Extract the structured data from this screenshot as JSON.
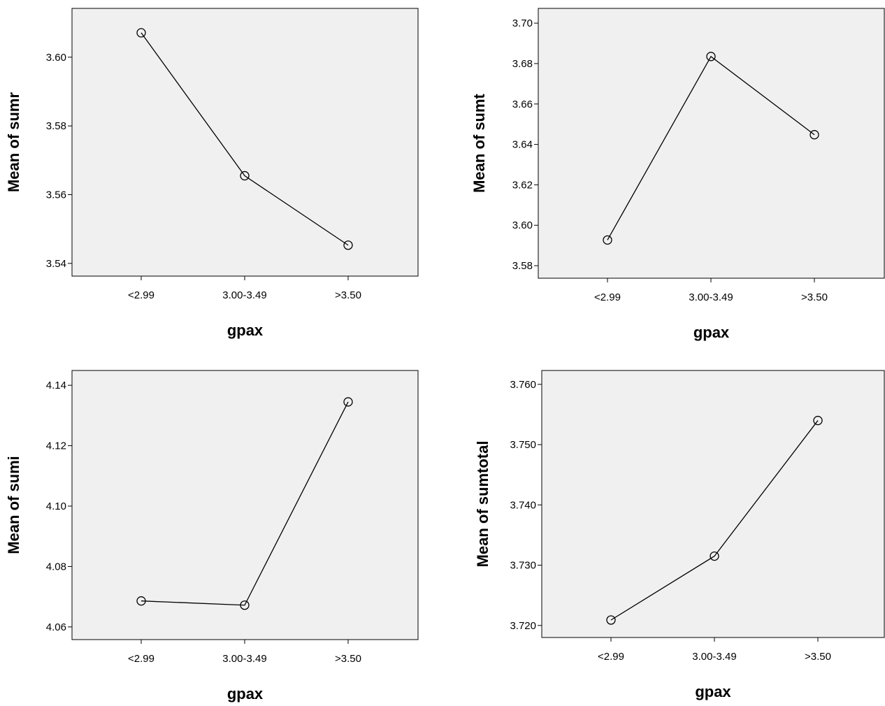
{
  "chart_data": [
    {
      "type": "line",
      "y_label": "Mean of sumr",
      "x_label": "gpax",
      "categories": [
        "<2.99",
        "3.00-3.49",
        ">3.50"
      ],
      "values": [
        3.6071,
        3.5655,
        3.5453
      ],
      "color": "#000000",
      "ylim": [
        3.5363,
        3.6142
      ],
      "yticks": [
        3.54,
        3.56,
        3.58,
        {
          "value": 3.6,
          "label": "3.60"
        }
      ]
    },
    {
      "type": "line",
      "y_label": "Mean of sumt",
      "x_label": "gpax",
      "categories": [
        "<2.99",
        "3.00-3.49",
        ">3.50"
      ],
      "values": [
        3.5927,
        3.6835,
        3.6448
      ],
      "color": "#000000",
      "ylim": [
        3.5738,
        3.7073
      ],
      "yticks": [
        3.58,
        {
          "value": 3.6,
          "label": "3.60"
        },
        3.62,
        3.64,
        3.66,
        3.68,
        {
          "value": 3.7,
          "label": "3.70"
        }
      ]
    },
    {
      "type": "line",
      "y_label": "Mean of sumi",
      "x_label": "gpax",
      "categories": [
        "<2.99",
        "3.00-3.49",
        ">3.50"
      ],
      "values": [
        4.0686,
        4.0672,
        4.1345
      ],
      "color": "#000000",
      "ylim": [
        4.0558,
        4.1449
      ],
      "yticks": [
        4.06,
        4.08,
        {
          "value": 4.1,
          "label": "4.10"
        },
        4.12,
        4.14
      ]
    },
    {
      "type": "line",
      "y_label": "Mean of sumtotal",
      "x_label": "gpax",
      "categories": [
        "<2.99",
        "3.00-3.49",
        ">3.50"
      ],
      "values": [
        3.7209,
        3.7315,
        3.754
      ],
      "color": "#000000",
      "ylim": [
        3.718,
        3.7623
      ],
      "yticks": [
        {
          "value": 3.72,
          "label": "3.720"
        },
        {
          "value": 3.73,
          "label": "3.730"
        },
        {
          "value": 3.74,
          "label": "3.740"
        },
        {
          "value": 3.75,
          "label": "3.750"
        },
        {
          "value": 3.76,
          "label": "3.760"
        }
      ]
    }
  ]
}
